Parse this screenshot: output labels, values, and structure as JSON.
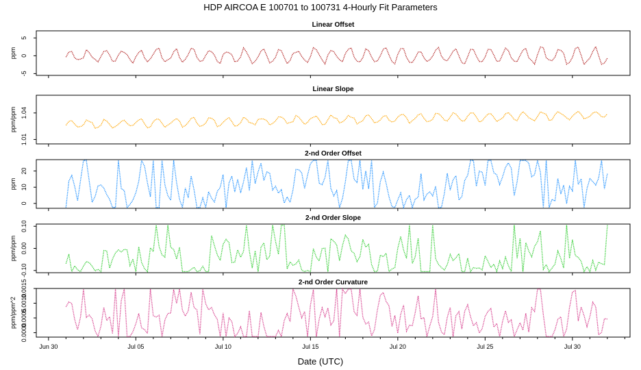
{
  "figure": {
    "title": "HDP    AIRCOA E    100701 to 100731    4-Hourly Fit Parameters",
    "xlabel": "Date (UTC)",
    "x_tick_labels": [
      "Jun 30",
      "Jul 05",
      "Jul 10",
      "Jul 15",
      "Jul 20",
      "Jul 25",
      "Jul 30"
    ],
    "x_tick_days": [
      0,
      5,
      10,
      15,
      20,
      25,
      30
    ],
    "x_range_days": [
      -0.7,
      33.3
    ],
    "data_x_range_days": [
      1.0,
      32.0
    ],
    "points_per_day": 6
  },
  "chart_data": [
    {
      "type": "line",
      "title": "Linear Offset",
      "ylabel": "ppm",
      "color": "#b22222",
      "ylim": [
        -5.5,
        7
      ],
      "yticks": [
        -5,
        0,
        5
      ],
      "ytick_labels": [
        "-5",
        "0",
        "5"
      ],
      "series": [
        {
          "name": "Linear Offset",
          "model": {
            "kind": "diurnal",
            "base": 0,
            "amp": 1.6,
            "amp_growth": 0.012,
            "noise": 0.7,
            "seed": 11
          }
        }
      ]
    },
    {
      "type": "line",
      "title": "Linear Slope",
      "ylabel": "ppm/ppm",
      "color": "#ffa500",
      "ylim": [
        1.005,
        1.06
      ],
      "yticks": [
        1.01,
        1.04
      ],
      "ytick_labels": [
        "1.01",
        "1.04"
      ],
      "series": [
        {
          "name": "Linear Slope",
          "model": {
            "kind": "diurnal",
            "base": 1.027,
            "trend": 0.00035,
            "amp": 0.0045,
            "amp_growth": 0.0,
            "noise": 0.0018,
            "seed": 23
          }
        }
      ]
    },
    {
      "type": "line",
      "title": "2-nd Order Offset",
      "ylabel": "ppm",
      "color": "#1e90ff",
      "ylim": [
        -3,
        27
      ],
      "yticks": [
        0,
        10,
        20
      ],
      "ytick_labels": [
        "0",
        "10",
        "20"
      ],
      "series": [
        {
          "name": "2-nd Order Offset",
          "model": {
            "kind": "erratic",
            "base": 10,
            "amp": 12,
            "noise": 8,
            "clip": [
              -2.5,
              26.5
            ],
            "seed": 37
          }
        }
      ]
    },
    {
      "type": "line",
      "title": "2-nd Order Slope",
      "ylabel": "ppm/ppm",
      "color": "#32cd32",
      "ylim": [
        -0.11,
        0.11
      ],
      "yticks": [
        -0.1,
        0.0,
        0.1
      ],
      "ytick_labels": [
        "-0.10",
        "0.00",
        "0.10"
      ],
      "series": [
        {
          "name": "2-nd Order Slope",
          "model": {
            "kind": "erratic",
            "base": -0.04,
            "amp": 0.06,
            "noise": 0.04,
            "clip": [
              -0.105,
              0.105
            ],
            "seed": 53
          }
        }
      ]
    },
    {
      "type": "line",
      "title": "2-nd Order Curvature",
      "ylabel": "ppm/ppm^2",
      "color": "#d63c8c",
      "ylim": [
        -0.00015,
        0.0015
      ],
      "yticks": [
        0.0,
        0.0005,
        0.001,
        0.0015
      ],
      "ytick_labels": [
        "0.0000",
        "0.0005",
        "0.0010",
        "0.0015"
      ],
      "series": [
        {
          "name": "2-nd Order Curvature",
          "model": {
            "kind": "erratic",
            "base": 0.00055,
            "amp": 0.0006,
            "noise": 0.0004,
            "clip": [
              -0.00013,
              0.00148
            ],
            "seed": 71
          }
        }
      ]
    }
  ]
}
